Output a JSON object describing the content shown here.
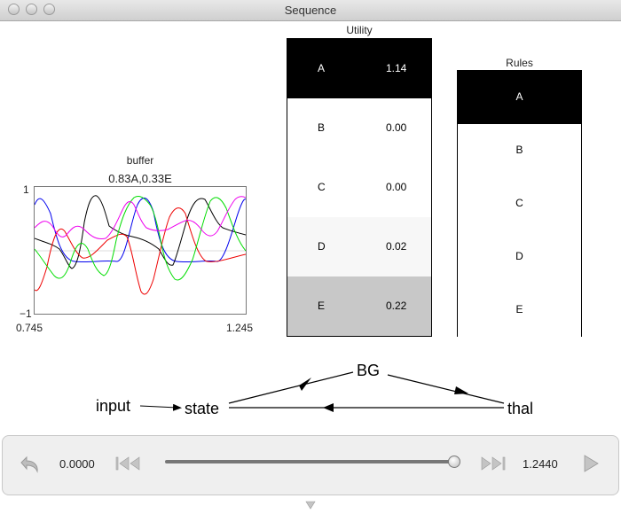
{
  "window": {
    "title": "Sequence"
  },
  "buffer": {
    "label": "buffer",
    "value": "0.83A,0.33E",
    "y_max": "1",
    "y_min": "−1",
    "x_min": "0.745",
    "x_max": "1.245"
  },
  "utility": {
    "title": "Utility",
    "rows": [
      {
        "name": "A",
        "value": "1.14",
        "bg": "#000000",
        "fg": "#ffffff"
      },
      {
        "name": "B",
        "value": "0.00",
        "bg": "#ffffff",
        "fg": "#000000"
      },
      {
        "name": "C",
        "value": "0.00",
        "bg": "#ffffff",
        "fg": "#000000"
      },
      {
        "name": "D",
        "value": "0.02",
        "bg": "#f7f7f7",
        "fg": "#000000"
      },
      {
        "name": "E",
        "value": "0.22",
        "bg": "#c8c8c8",
        "fg": "#000000"
      }
    ]
  },
  "rules": {
    "title": "Rules",
    "rows": [
      {
        "name": "A",
        "bg": "#000000",
        "fg": "#ffffff"
      },
      {
        "name": "B",
        "bg": "#ffffff",
        "fg": "#000000"
      },
      {
        "name": "C",
        "bg": "#ffffff",
        "fg": "#000000"
      },
      {
        "name": "D",
        "bg": "#ffffff",
        "fg": "#000000"
      },
      {
        "name": "E",
        "bg": "#ffffff",
        "fg": "#000000"
      }
    ]
  },
  "diagram": {
    "input": "input",
    "state": "state",
    "bg": "BG",
    "thal": "thal"
  },
  "controls": {
    "start_time": "0.0000",
    "end_time": "1.2440",
    "slider_fraction": 0.97
  },
  "colors": {
    "blue": "#0000ee",
    "red": "#ee0000",
    "green": "#00dd00",
    "black": "#000000",
    "magenta": "#ee00ee"
  }
}
